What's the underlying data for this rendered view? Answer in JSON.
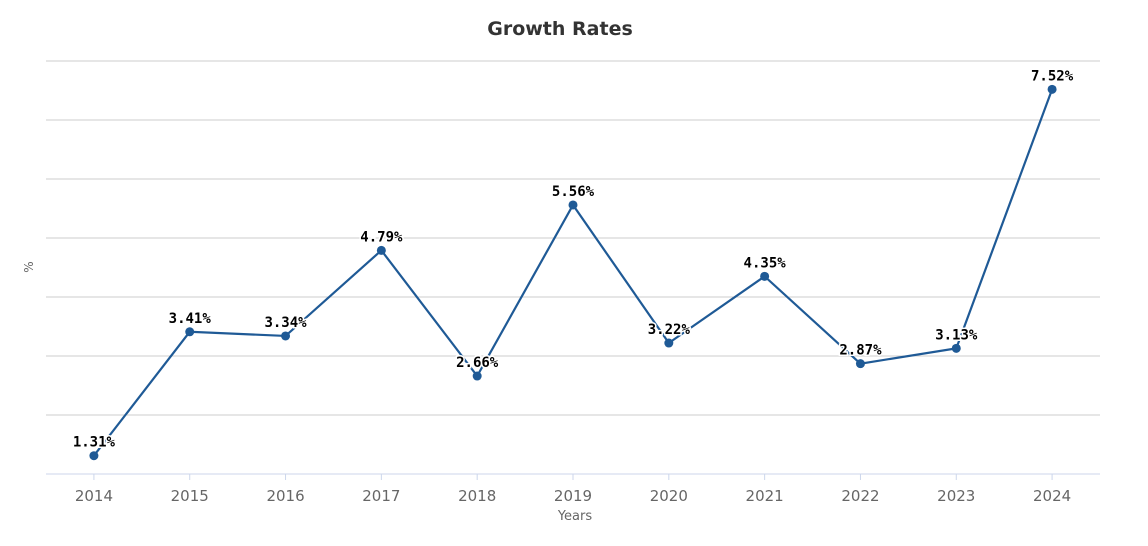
{
  "chart_data": {
    "type": "line",
    "title": "Growth Rates",
    "xlabel": "Years",
    "ylabel": "%",
    "categories": [
      "2014",
      "2015",
      "2016",
      "2017",
      "2018",
      "2019",
      "2020",
      "2021",
      "2022",
      "2023",
      "2024"
    ],
    "values": [
      1.31,
      3.41,
      3.34,
      4.79,
      2.66,
      5.56,
      3.22,
      4.35,
      2.87,
      3.13,
      7.52
    ],
    "data_labels": [
      "1.31%",
      "3.41%",
      "3.34%",
      "4.79%",
      "2.66%",
      "5.56%",
      "3.22%",
      "4.35%",
      "2.87%",
      "3.13%",
      "7.52%"
    ],
    "ylim": [
      1,
      8
    ],
    "y_grid_step": 1,
    "grid": true,
    "y_tick_labels_shown": false,
    "legend": "none",
    "colors": {
      "line": "#1f5a96",
      "grid": "#cccccc",
      "title": "#333333",
      "axis_text": "#666666"
    }
  }
}
